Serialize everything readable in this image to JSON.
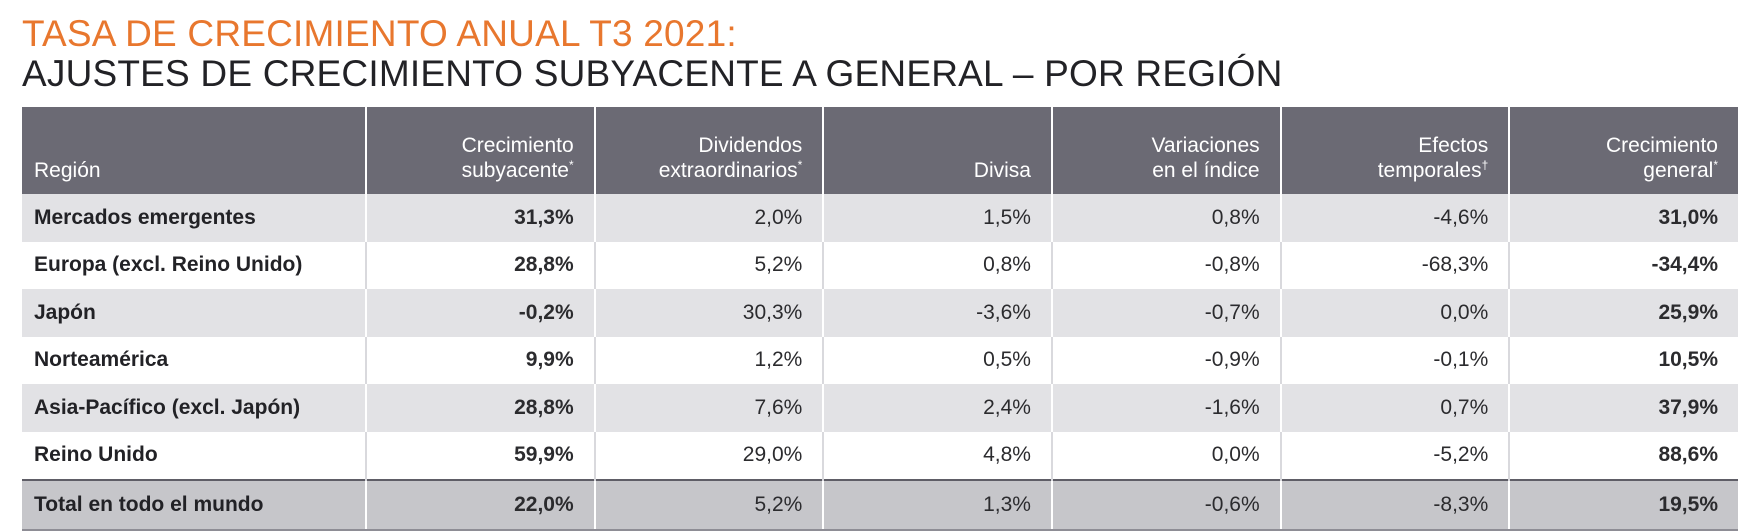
{
  "title": {
    "line1": "TASA DE CRECIMIENTO ANUAL T3 2021:",
    "line2": "AJUSTES DE CRECIMIENTO SUBYACENTE A GENERAL – POR REGIÓN"
  },
  "colors": {
    "title_orange": "#e8772e",
    "header_bg": "#6b6a74",
    "stripe_bg": "#e2e2e5",
    "total_bg": "#c6c6ca"
  },
  "table": {
    "headers": [
      {
        "line1": "",
        "line2": "Región",
        "mark": ""
      },
      {
        "line1": "Crecimiento",
        "line2": "subyacente",
        "mark": "*"
      },
      {
        "line1": "Dividendos",
        "line2": "extraordinarios",
        "mark": "*"
      },
      {
        "line1": "",
        "line2": "Divisa",
        "mark": ""
      },
      {
        "line1": "Variaciones",
        "line2": "en el índice",
        "mark": ""
      },
      {
        "line1": "Efectos",
        "line2": "temporales",
        "mark": "†"
      },
      {
        "line1": "Crecimiento",
        "line2": "general",
        "mark": "*"
      }
    ],
    "rows": [
      {
        "region": "Mercados emergentes",
        "subyacente": "31,3%",
        "dividendos": "2,0%",
        "divisa": "1,5%",
        "indice": "0,8%",
        "temporales": "-4,6%",
        "general": "31,0%"
      },
      {
        "region": "Europa (excl. Reino Unido)",
        "subyacente": "28,8%",
        "dividendos": "5,2%",
        "divisa": "0,8%",
        "indice": "-0,8%",
        "temporales": "-68,3%",
        "general": "-34,4%"
      },
      {
        "region": "Japón",
        "subyacente": "-0,2%",
        "dividendos": "30,3%",
        "divisa": "-3,6%",
        "indice": "-0,7%",
        "temporales": "0,0%",
        "general": "25,9%"
      },
      {
        "region": "Norteamérica",
        "subyacente": "9,9%",
        "dividendos": "1,2%",
        "divisa": "0,5%",
        "indice": "-0,9%",
        "temporales": "-0,1%",
        "general": "10,5%"
      },
      {
        "region": "Asia-Pacífico (excl. Japón)",
        "subyacente": "28,8%",
        "dividendos": "7,6%",
        "divisa": "2,4%",
        "indice": "-1,6%",
        "temporales": "0,7%",
        "general": "37,9%"
      },
      {
        "region": "Reino Unido",
        "subyacente": "59,9%",
        "dividendos": "29,0%",
        "divisa": "4,8%",
        "indice": "0,0%",
        "temporales": "-5,2%",
        "general": "88,6%"
      }
    ],
    "total": {
      "region": "Total en todo el mundo",
      "subyacente": "22,0%",
      "dividendos": "5,2%",
      "divisa": "1,3%",
      "indice": "-0,6%",
      "temporales": "-8,3%",
      "general": "19,5%"
    }
  }
}
